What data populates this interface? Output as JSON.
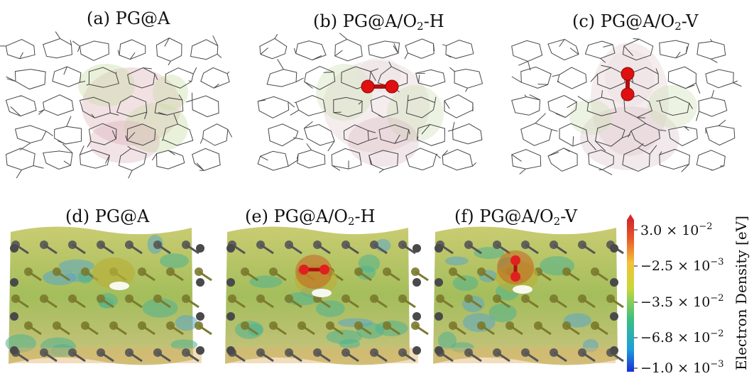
{
  "panels_top": [
    {
      "pre": "(a) PG@A",
      "sub": "",
      "post": ""
    },
    {
      "pre": "(b) PG@A/O",
      "sub": "2",
      "post": "-H"
    },
    {
      "pre": "(c) PG@A/O",
      "sub": "2",
      "post": "-V"
    }
  ],
  "panels_bottom": [
    {
      "pre": "(d) PG@A",
      "sub": "",
      "post": ""
    },
    {
      "pre": "(e) PG@A/O",
      "sub": "2",
      "post": "-H"
    },
    {
      "pre": "(f) PG@A/O",
      "sub": "2",
      "post": "-V"
    }
  ],
  "colorbar": {
    "title": "Electron Density [eV]",
    "ticks": [
      {
        "sign": "",
        "mant": "3.0 × 10",
        "exp": "−2"
      },
      {
        "sign": "−",
        "mant": "2.5 × 10",
        "exp": "−3"
      },
      {
        "sign": "−",
        "mant": "3.5 × 10",
        "exp": "−2"
      },
      {
        "sign": "−",
        "mant": "6.8 × 10",
        "exp": "−2"
      },
      {
        "sign": "−",
        "mant": "1.0 × 10",
        "exp": "−3"
      }
    ],
    "colors": [
      "#1a2fd6",
      "#1e9fd8",
      "#3fbf7f",
      "#c8d83a",
      "#f3c13a",
      "#e8562a",
      "#d42a2a"
    ]
  }
}
